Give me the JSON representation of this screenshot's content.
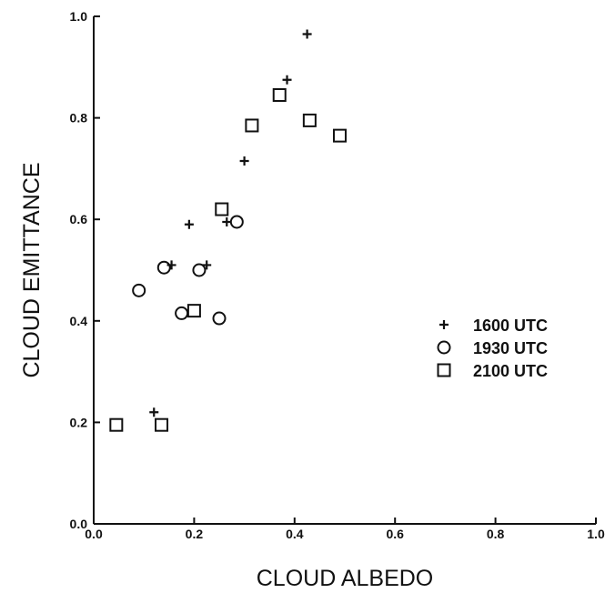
{
  "chart_data": {
    "type": "scatter",
    "xlabel": "CLOUD ALBEDO",
    "ylabel": "CLOUD EMITTANCE",
    "xlim": [
      0.0,
      1.0
    ],
    "ylim": [
      0.0,
      1.0
    ],
    "x_ticks": [
      "0.0",
      "0.2",
      "0.4",
      "0.6",
      "0.8",
      "1.0"
    ],
    "y_ticks": [
      "0.0",
      "0.2",
      "0.4",
      "0.6",
      "0.8",
      "1.0"
    ],
    "grid": false,
    "legend_position": "right",
    "series": [
      {
        "name": "1600 UTC",
        "marker": "plus",
        "points": [
          [
            0.12,
            0.22
          ],
          [
            0.155,
            0.51
          ],
          [
            0.19,
            0.59
          ],
          [
            0.225,
            0.51
          ],
          [
            0.265,
            0.595
          ],
          [
            0.3,
            0.715
          ],
          [
            0.385,
            0.875
          ],
          [
            0.425,
            0.965
          ]
        ]
      },
      {
        "name": "1930 UTC",
        "marker": "circle",
        "points": [
          [
            0.09,
            0.46
          ],
          [
            0.14,
            0.505
          ],
          [
            0.175,
            0.415
          ],
          [
            0.21,
            0.5
          ],
          [
            0.25,
            0.405
          ],
          [
            0.285,
            0.595
          ]
        ]
      },
      {
        "name": "2100 UTC",
        "marker": "square",
        "points": [
          [
            0.045,
            0.195
          ],
          [
            0.135,
            0.195
          ],
          [
            0.2,
            0.42
          ],
          [
            0.255,
            0.62
          ],
          [
            0.315,
            0.785
          ],
          [
            0.37,
            0.845
          ],
          [
            0.43,
            0.795
          ],
          [
            0.49,
            0.765
          ]
        ]
      }
    ]
  }
}
